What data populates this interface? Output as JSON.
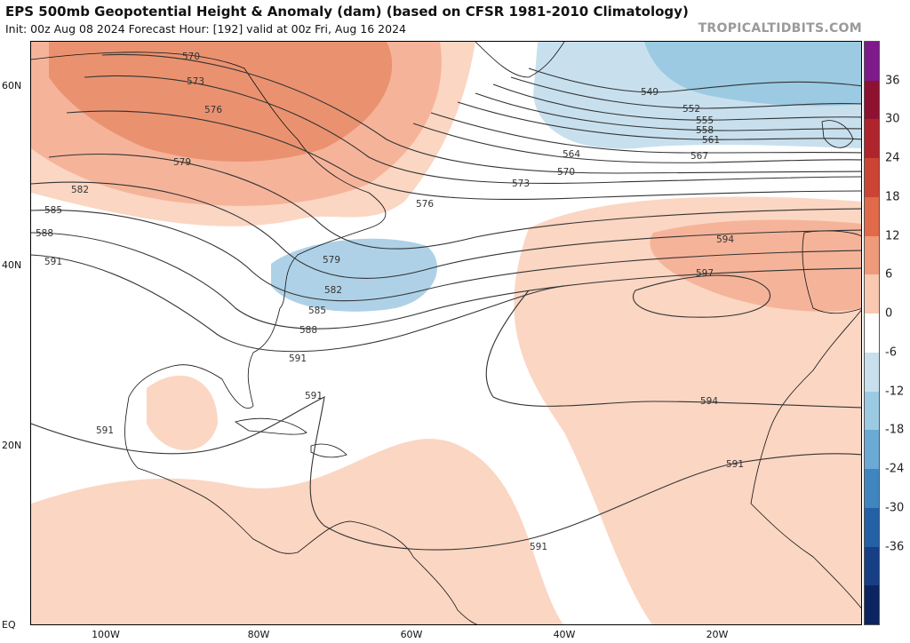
{
  "header": {
    "title": "EPS 500mb Geopotential Height & Anomaly (dam) (based on CFSR 1981-2010 Climatology)",
    "subtitle": "Init: 00z Aug 08 2024   Forecast Hour: [192]   valid at 00z Fri, Aug 16 2024",
    "credit": "TROPICALTIDBITS.COM"
  },
  "axes": {
    "lat_labels": [
      "60N",
      "40N",
      "20N",
      "EQ"
    ],
    "lon_labels": [
      "100W",
      "80W",
      "60W",
      "40W",
      "20W"
    ]
  },
  "colorbar": {
    "ticks": [
      "36",
      "30",
      "24",
      "18",
      "12",
      "6",
      "0",
      "-6",
      "-12",
      "-18",
      "-24",
      "-30",
      "-36"
    ],
    "colors": [
      "#7e1a8a",
      "#8e1230",
      "#b0242c",
      "#cc4433",
      "#e06a4a",
      "#ef9a7a",
      "#f8c8b0",
      "#ffffff",
      "#c8e0ee",
      "#9ccae2",
      "#6aaad4",
      "#3f86c0",
      "#2360a6",
      "#173f86",
      "#0c2560"
    ]
  },
  "contour_labels": [
    "570",
    "573",
    "576",
    "579",
    "582",
    "585",
    "588",
    "591",
    "579",
    "582",
    "585",
    "588",
    "591",
    "549",
    "552",
    "555",
    "558",
    "561",
    "564",
    "567",
    "570",
    "573",
    "576",
    "594",
    "597",
    "591",
    "591",
    "594",
    "591",
    "591"
  ],
  "legend": {
    "units": "dam"
  }
}
